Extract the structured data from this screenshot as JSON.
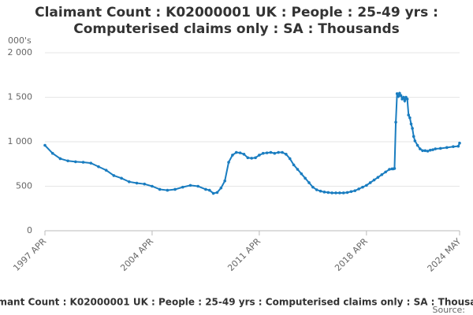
{
  "chart_data": {
    "type": "line",
    "title": "Claimant Count : K02000001 UK : People : 25-49 yrs : Computerised claims only : SA : Thousands",
    "y_label": "000's",
    "source": "Source:",
    "color": "#1a7dc0",
    "grid": true,
    "x": [
      "1997 APR",
      "1997 OCT",
      "1998 APR",
      "1998 OCT",
      "1999 APR",
      "1999 OCT",
      "2000 APR",
      "2000 OCT",
      "2001 APR",
      "2001 OCT",
      "2002 APR",
      "2002 OCT",
      "2003 APR",
      "2003 OCT",
      "2004 APR",
      "2004 OCT",
      "2005 APR",
      "2005 OCT",
      "2006 APR",
      "2006 OCT",
      "2007 APR",
      "2007 OCT",
      "2008 JAN",
      "2008 APR",
      "2008 JUL",
      "2008 OCT",
      "2009 JAN",
      "2009 APR",
      "2009 JUL",
      "2009 OCT",
      "2010 JAN",
      "2010 APR",
      "2010 JUL",
      "2010 OCT",
      "2011 JAN",
      "2011 APR",
      "2011 JUL",
      "2011 OCT",
      "2012 JAN",
      "2012 APR",
      "2012 JUL",
      "2012 OCT",
      "2013 JAN",
      "2013 APR",
      "2013 JUL",
      "2013 OCT",
      "2014 JAN",
      "2014 APR",
      "2014 JUL",
      "2014 OCT",
      "2015 JAN",
      "2015 APR",
      "2015 JUL",
      "2015 OCT",
      "2016 JAN",
      "2016 APR",
      "2016 JUL",
      "2016 OCT",
      "2017 JAN",
      "2017 APR",
      "2017 JUL",
      "2017 OCT",
      "2018 JAN",
      "2018 APR",
      "2018 JUL",
      "2018 OCT",
      "2019 JAN",
      "2019 APR",
      "2019 JUL",
      "2019 OCT",
      "2019 DEC",
      "2020 JAN",
      "2020 FEB",
      "2020 MAR",
      "2020 APR",
      "2020 MAY",
      "2020 JUN",
      "2020 JUL",
      "2020 AUG",
      "2020 SEP",
      "2020 OCT",
      "2020 NOV",
      "2020 DEC",
      "2021 JAN",
      "2021 FEB",
      "2021 MAR",
      "2021 APR",
      "2021 MAY",
      "2021 JUN",
      "2021 AUG",
      "2021 OCT",
      "2021 DEC",
      "2022 FEB",
      "2022 APR",
      "2022 JUN",
      "2022 AUG",
      "2022 OCT",
      "2023 FEB",
      "2023 JUL",
      "2023 DEC",
      "2024 APR",
      "2024 MAY"
    ],
    "values": [
      960,
      870,
      810,
      785,
      775,
      770,
      760,
      720,
      680,
      620,
      590,
      550,
      535,
      525,
      500,
      465,
      455,
      465,
      490,
      510,
      500,
      465,
      455,
      420,
      430,
      480,
      560,
      770,
      850,
      880,
      875,
      860,
      820,
      815,
      820,
      850,
      870,
      875,
      880,
      870,
      880,
      880,
      860,
      810,
      740,
      690,
      640,
      590,
      540,
      490,
      460,
      445,
      435,
      430,
      425,
      425,
      425,
      425,
      430,
      440,
      450,
      470,
      490,
      510,
      540,
      570,
      600,
      630,
      660,
      690,
      695,
      695,
      700,
      1220,
      1540,
      1510,
      1545,
      1520,
      1480,
      1500,
      1460,
      1500,
      1480,
      1300,
      1270,
      1200,
      1150,
      1060,
      1010,
      960,
      920,
      900,
      900,
      895,
      905,
      910,
      920,
      925,
      935,
      945,
      950,
      985
    ],
    "xticks": [
      "1997 APR",
      "2004 APR",
      "2011 APR",
      "2018 APR",
      "2024 MAY"
    ],
    "ylim": [
      0,
      2000
    ],
    "yticks": [
      0,
      500,
      {
        "value": 1000,
        "label": "1 000"
      },
      {
        "value": 1500,
        "label": "1 500"
      },
      {
        "value": 2000,
        "label": "2 000"
      }
    ]
  }
}
